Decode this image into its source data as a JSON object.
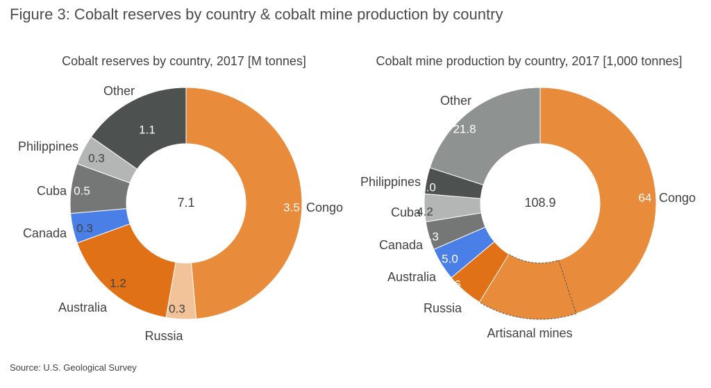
{
  "figure_title": "Figure 3: Cobalt reserves by country & cobalt mine production by country",
  "source": "Source: U.S. Geological Survey",
  "chart_data": [
    {
      "type": "pie",
      "title": "Cobalt reserves by country, 2017 [M tonnes]",
      "center_label": "7.1",
      "slices": [
        {
          "name": "Congo",
          "value": 3.5,
          "value_label": "3.5",
          "color": "#E88B3A"
        },
        {
          "name": "Russia",
          "value": 0.3,
          "value_label": "0.3",
          "color": "#F2C298"
        },
        {
          "name": "Australia",
          "value": 1.2,
          "value_label": "1.2",
          "color": "#E07116"
        },
        {
          "name": "Canada",
          "value": 0.3,
          "value_label": "0.3",
          "color": "#4A7FE8"
        },
        {
          "name": "Cuba",
          "value": 0.5,
          "value_label": "0.5",
          "color": "#747775"
        },
        {
          "name": "Philippines",
          "value": 0.3,
          "value_label": "0.3",
          "color": "#B3B6B5"
        },
        {
          "name": "Other",
          "value": 1.1,
          "value_label": "1.1",
          "color": "#4D5251"
        }
      ]
    },
    {
      "type": "pie",
      "title": "Cobalt mine production by country, 2017 [1,000 tonnes]",
      "center_label": "108.9",
      "slices": [
        {
          "name": "Congo",
          "value": 64,
          "value_label": "64",
          "color": "#E88B3A"
        },
        {
          "name": "Russia",
          "value": 5.6,
          "value_label": "5.6",
          "color": "#E07116"
        },
        {
          "name": "Australia",
          "value": 5.0,
          "value_label": "5.0",
          "color": "#4A7FE8"
        },
        {
          "name": "Canada",
          "value": 4.3,
          "value_label": "4.3",
          "color": "#747775"
        },
        {
          "name": "Cuba",
          "value": 4.2,
          "value_label": "4.2",
          "color": "#B3B6B5"
        },
        {
          "name": "Philippines",
          "value": 4.0,
          "value_label": "4.0",
          "color": "#4D5251"
        },
        {
          "name": "Other",
          "value": 21.8,
          "value_label": "21.8",
          "color": "#8E9291"
        }
      ],
      "sub_segment": {
        "parent": "Congo",
        "name": "Artisanal mines",
        "value": 15,
        "color": "#E88B3A",
        "border": "dashed"
      }
    }
  ]
}
